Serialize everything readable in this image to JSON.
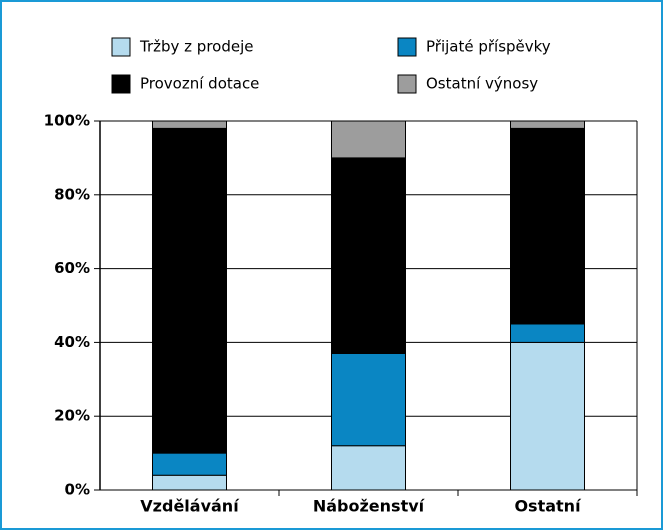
{
  "chart_data": {
    "type": "stacked_bar",
    "categories": [
      "Vzdělávání",
      "Náboženství",
      "Ostatní"
    ],
    "series": [
      {
        "name": "Tržby z prodeje",
        "color": "#b5dbee",
        "values": [
          4,
          12,
          40
        ]
      },
      {
        "name": "Přijaté příspěvky",
        "color": "#0a86c3",
        "values": [
          6,
          25,
          5
        ]
      },
      {
        "name": "Provozní dotace",
        "color": "#000000",
        "values": [
          88,
          53,
          53
        ]
      },
      {
        "name": "Ostatní výnosy",
        "color": "#9d9d9d",
        "values": [
          2,
          10,
          2
        ]
      }
    ],
    "ylim": [
      0,
      100
    ],
    "yticks": [
      {
        "value": 0,
        "label": "0%"
      },
      {
        "value": 20,
        "label": "20%"
      },
      {
        "value": 40,
        "label": "40%"
      },
      {
        "value": 60,
        "label": "60%"
      },
      {
        "value": 80,
        "label": "80%"
      },
      {
        "value": 100,
        "label": "100%"
      }
    ],
    "grid": true
  }
}
